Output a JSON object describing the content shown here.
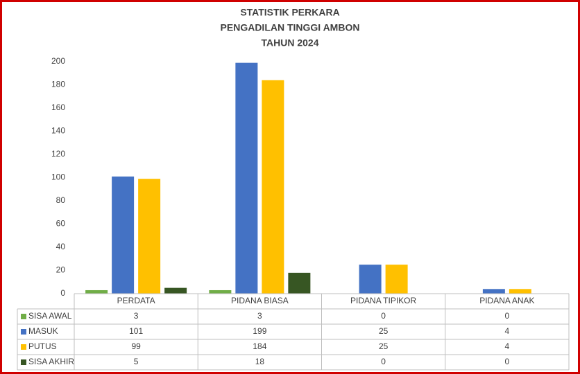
{
  "chart_data": {
    "type": "bar",
    "title": [
      "STATISTIK PERKARA",
      "PENGADILAN TINGGI AMBON",
      "TAHUN 2024"
    ],
    "categories": [
      "PERDATA",
      "PIDANA BIASA",
      "PIDANA TIPIKOR",
      "PIDANA ANAK"
    ],
    "series": [
      {
        "name": "SISA AWAL",
        "color": "#70ad47",
        "values": [
          3,
          3,
          0,
          0
        ]
      },
      {
        "name": "MASUK",
        "color": "#4472c4",
        "values": [
          101,
          199,
          25,
          4
        ]
      },
      {
        "name": "PUTUS",
        "color": "#ffc000",
        "values": [
          99,
          184,
          25,
          4
        ]
      },
      {
        "name": "SISA AKHIR",
        "color": "#375623",
        "values": [
          5,
          18,
          0,
          0
        ]
      }
    ],
    "ylim": [
      0,
      200
    ],
    "yticks": [
      0,
      20,
      40,
      60,
      80,
      100,
      120,
      140,
      160,
      180,
      200
    ],
    "grid": false,
    "data_table": true
  }
}
